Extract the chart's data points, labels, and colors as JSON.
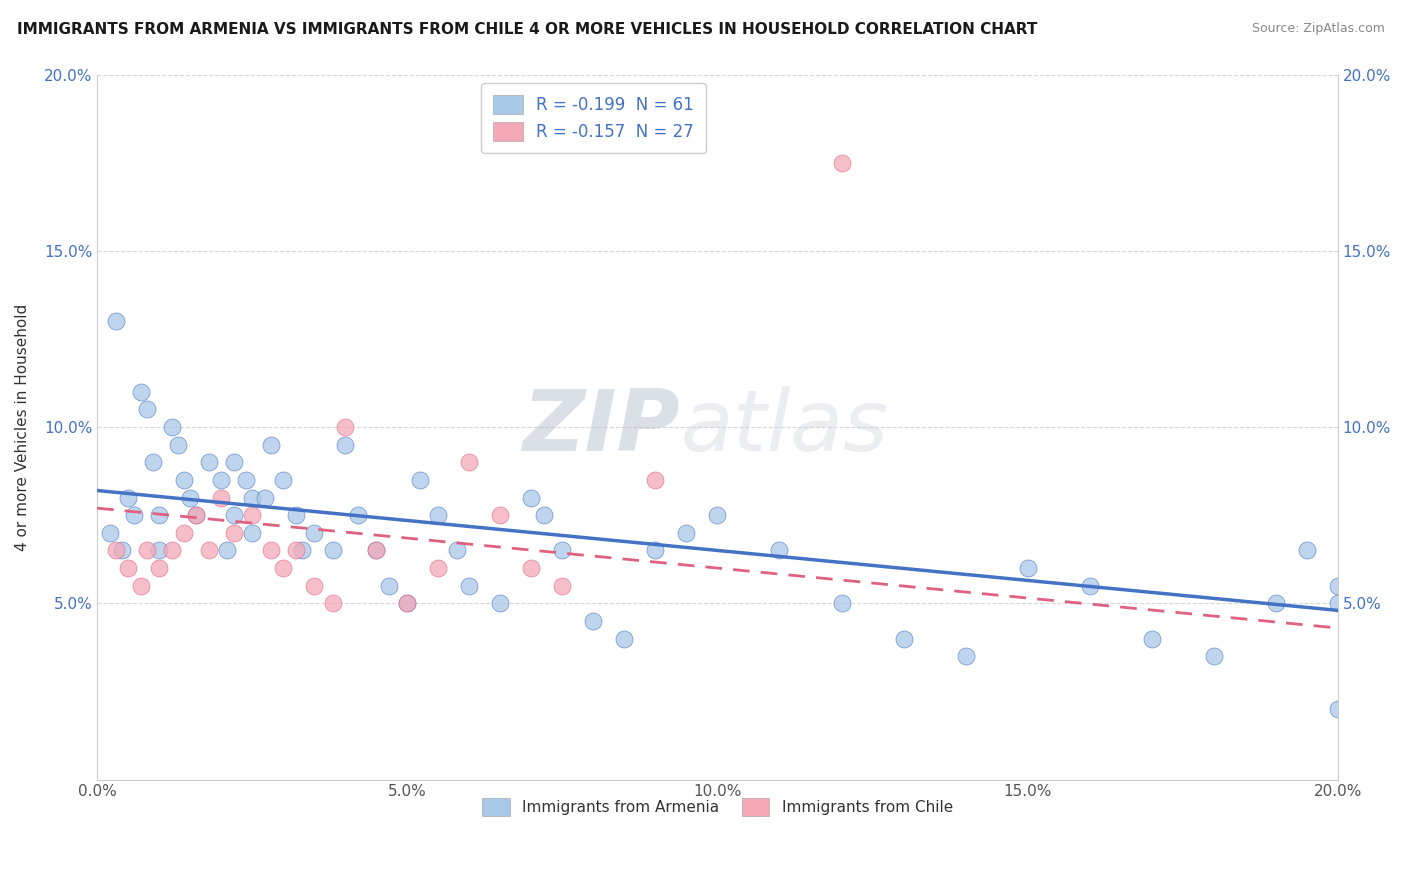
{
  "title": "IMMIGRANTS FROM ARMENIA VS IMMIGRANTS FROM CHILE 4 OR MORE VEHICLES IN HOUSEHOLD CORRELATION CHART",
  "source": "Source: ZipAtlas.com",
  "xlabel_bottom": [
    "Immigrants from Armenia",
    "Immigrants from Chile"
  ],
  "ylabel": "4 or more Vehicles in Household",
  "xlim": [
    0.0,
    0.2
  ],
  "ylim": [
    0.0,
    0.2
  ],
  "xtick_labels": [
    "0.0%",
    "5.0%",
    "10.0%",
    "15.0%",
    "20.0%"
  ],
  "xtick_vals": [
    0.0,
    0.05,
    0.1,
    0.15,
    0.2
  ],
  "ytick_labels": [
    "",
    "5.0%",
    "10.0%",
    "15.0%",
    "20.0%"
  ],
  "ytick_vals": [
    0.0,
    0.05,
    0.1,
    0.15,
    0.2
  ],
  "legend_r1": "R = -0.199  N = 61",
  "legend_r2": "R = -0.157  N = 27",
  "color_armenia": "#A8C8E8",
  "color_chile": "#F4A8B8",
  "trendline_armenia_color": "#4472C4",
  "trendline_chile_color": "#E06080",
  "watermark_zip": "ZIP",
  "watermark_atlas": "atlas",
  "armenia_x": [
    0.002,
    0.003,
    0.004,
    0.005,
    0.006,
    0.007,
    0.008,
    0.009,
    0.01,
    0.01,
    0.012,
    0.013,
    0.014,
    0.015,
    0.016,
    0.018,
    0.02,
    0.021,
    0.022,
    0.022,
    0.024,
    0.025,
    0.025,
    0.027,
    0.028,
    0.03,
    0.032,
    0.033,
    0.035,
    0.038,
    0.04,
    0.042,
    0.045,
    0.047,
    0.05,
    0.052,
    0.055,
    0.058,
    0.06,
    0.065,
    0.07,
    0.072,
    0.075,
    0.08,
    0.085,
    0.09,
    0.095,
    0.1,
    0.11,
    0.12,
    0.13,
    0.14,
    0.15,
    0.16,
    0.17,
    0.18,
    0.19,
    0.195,
    0.2,
    0.2,
    0.2
  ],
  "armenia_y": [
    0.07,
    0.13,
    0.065,
    0.08,
    0.075,
    0.11,
    0.105,
    0.09,
    0.075,
    0.065,
    0.1,
    0.095,
    0.085,
    0.08,
    0.075,
    0.09,
    0.085,
    0.065,
    0.09,
    0.075,
    0.085,
    0.08,
    0.07,
    0.08,
    0.095,
    0.085,
    0.075,
    0.065,
    0.07,
    0.065,
    0.095,
    0.075,
    0.065,
    0.055,
    0.05,
    0.085,
    0.075,
    0.065,
    0.055,
    0.05,
    0.08,
    0.075,
    0.065,
    0.045,
    0.04,
    0.065,
    0.07,
    0.075,
    0.065,
    0.05,
    0.04,
    0.035,
    0.06,
    0.055,
    0.04,
    0.035,
    0.05,
    0.065,
    0.055,
    0.05,
    0.02
  ],
  "chile_x": [
    0.003,
    0.005,
    0.007,
    0.008,
    0.01,
    0.012,
    0.014,
    0.016,
    0.018,
    0.02,
    0.022,
    0.025,
    0.028,
    0.03,
    0.032,
    0.035,
    0.038,
    0.04,
    0.045,
    0.05,
    0.055,
    0.06,
    0.065,
    0.07,
    0.075,
    0.09,
    0.12
  ],
  "chile_y": [
    0.065,
    0.06,
    0.055,
    0.065,
    0.06,
    0.065,
    0.07,
    0.075,
    0.065,
    0.08,
    0.07,
    0.075,
    0.065,
    0.06,
    0.065,
    0.055,
    0.05,
    0.1,
    0.065,
    0.05,
    0.06,
    0.09,
    0.075,
    0.06,
    0.055,
    0.085,
    0.175
  ],
  "arm_trend_x0": 0.0,
  "arm_trend_y0": 0.082,
  "arm_trend_x1": 0.2,
  "arm_trend_y1": 0.048,
  "chile_trend_x0": 0.0,
  "chile_trend_y0": 0.077,
  "chile_trend_x1": 0.2,
  "chile_trend_y1": 0.043
}
